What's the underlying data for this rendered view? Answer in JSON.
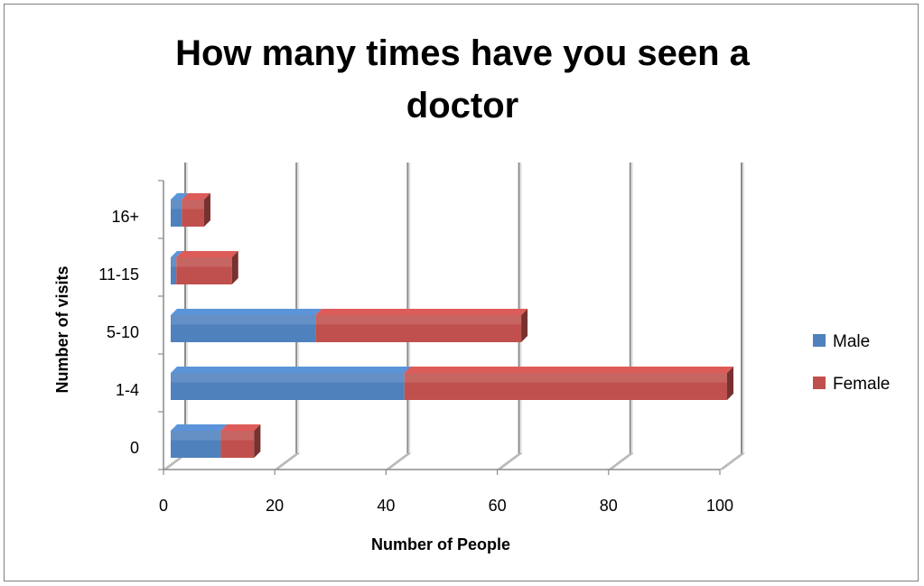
{
  "chart_data": {
    "type": "bar",
    "orientation": "horizontal",
    "stacked": true,
    "three_d": true,
    "title": "How many times have you seen a doctor",
    "title_lines": [
      "How many times have you seen a",
      "doctor"
    ],
    "xlabel": "Number of People",
    "ylabel": "Number of visits",
    "xlim": [
      0,
      100
    ],
    "x_ticks": [
      "0",
      "20",
      "40",
      "60",
      "80",
      "100"
    ],
    "categories": [
      "0",
      "1-4",
      "5-10",
      "11-15",
      "16+"
    ],
    "series": [
      {
        "name": "Male",
        "values": [
          9,
          42,
          26,
          1,
          2
        ],
        "color": "#4f81bd"
      },
      {
        "name": "Female",
        "values": [
          6,
          58,
          37,
          10,
          4
        ],
        "color": "#c0504d"
      }
    ],
    "grid": true,
    "legend": "right"
  }
}
